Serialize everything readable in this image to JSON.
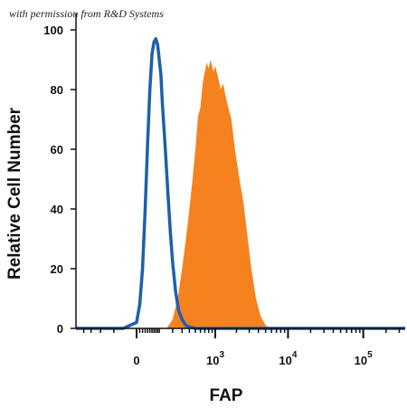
{
  "credit": "with permission from R&D Systems",
  "chart_data": {
    "type": "area",
    "xlabel": "FAP",
    "ylabel": "Relative Cell Number",
    "x_scale": "biexponential",
    "ylim": [
      0,
      100
    ],
    "y_ticks": [
      0,
      20,
      40,
      60,
      80,
      100
    ],
    "x_ticks": [
      {
        "value": 0,
        "base": "0",
        "exp": ""
      },
      {
        "value": 1000,
        "base": "10",
        "exp": "3"
      },
      {
        "value": 10000,
        "base": "10",
        "exp": "4"
      },
      {
        "value": 100000,
        "base": "10",
        "exp": "5"
      }
    ],
    "grid": false,
    "series": [
      {
        "style": "filled",
        "color": "#F5821F",
        "x": [
          150,
          200,
          250,
          300,
          350,
          400,
          450,
          500,
          550,
          600,
          650,
          700,
          750,
          800,
          850,
          900,
          950,
          1000,
          1100,
          1200,
          1300,
          1400,
          1500,
          1700,
          1900,
          2200,
          2500,
          2800,
          3200,
          3700,
          4300,
          5000,
          6000,
          7000
        ],
        "values": [
          0,
          3,
          10,
          20,
          30,
          40,
          50,
          60,
          71,
          74,
          82,
          86,
          89,
          87,
          90,
          88,
          86,
          88,
          84,
          80,
          82,
          78,
          75,
          70,
          60,
          50,
          42,
          32,
          20,
          10,
          4,
          1,
          0,
          0
        ]
      },
      {
        "style": "line",
        "color": "#1F5FA8",
        "x": [
          -50,
          0,
          10,
          20,
          30,
          40,
          50,
          60,
          70,
          80,
          90,
          100,
          110,
          120,
          140,
          160,
          180,
          200,
          230,
          260,
          300,
          350,
          400,
          500,
          600
        ],
        "values": [
          0,
          2,
          8,
          20,
          40,
          62,
          80,
          92,
          96,
          97,
          95,
          90,
          85,
          75,
          60,
          45,
          32,
          22,
          12,
          6,
          3,
          1,
          0.5,
          0,
          0
        ]
      }
    ]
  }
}
